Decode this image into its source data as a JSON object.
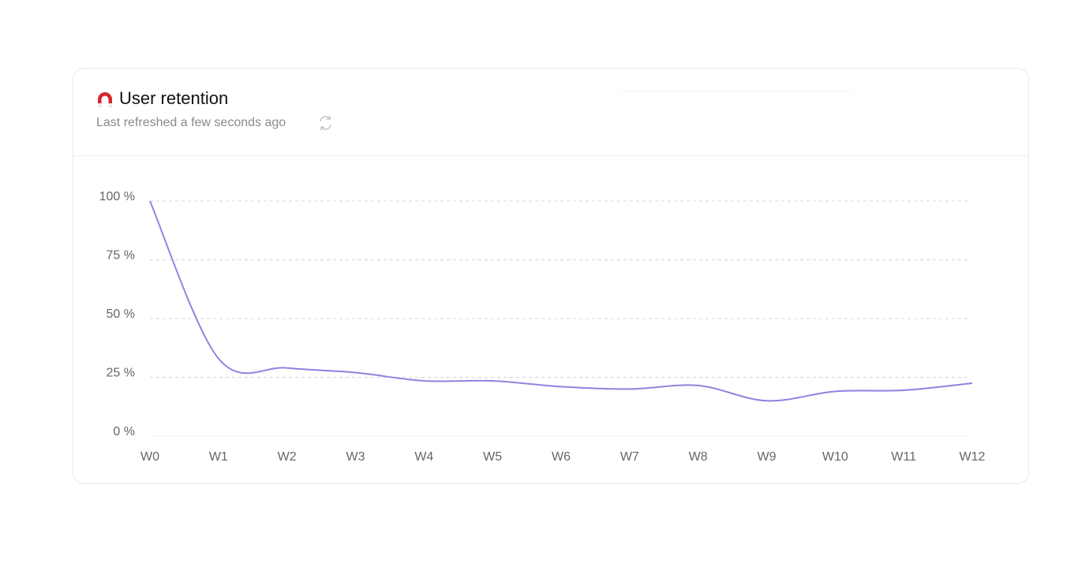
{
  "chart_data": {
    "type": "line",
    "title": "User retention",
    "subtitle": "Last refreshed a few seconds ago",
    "categories": [
      "W0",
      "W1",
      "W2",
      "W3",
      "W4",
      "W5",
      "W6",
      "W7",
      "W8",
      "W9",
      "W10",
      "W11",
      "W12"
    ],
    "values": [
      100,
      33,
      29,
      27,
      23.5,
      23.5,
      21,
      20,
      21.5,
      15,
      19,
      19.5,
      22.5
    ],
    "color": "#8b85e0",
    "ylim": [
      0,
      100
    ],
    "yticks": [
      {
        "value": 0,
        "label": "0 %"
      },
      {
        "value": 25,
        "label": "25 %"
      },
      {
        "value": 50,
        "label": "50 %"
      },
      {
        "value": 75,
        "label": "75 %"
      },
      {
        "value": 100,
        "label": "100 %"
      }
    ],
    "grid": true
  }
}
